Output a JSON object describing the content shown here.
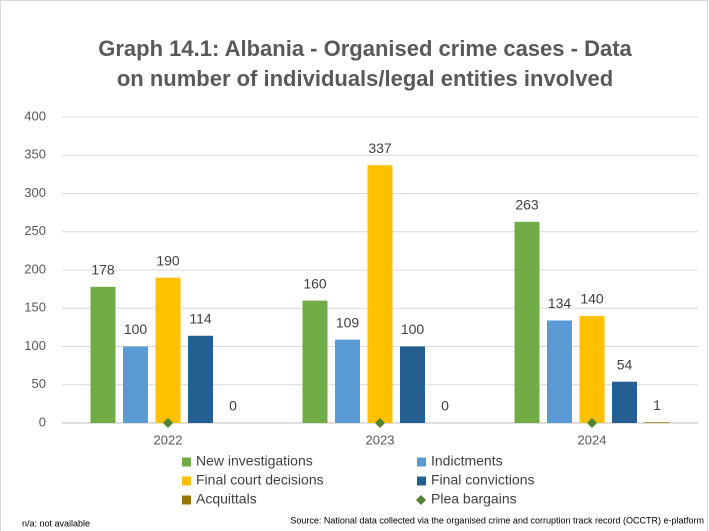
{
  "chart_data": {
    "type": "bar",
    "title": [
      "Graph 14.1: Albania - Organised crime cases - Data",
      "on number of individuals/legal entities involved"
    ],
    "categories": [
      "2022",
      "2023",
      "2024"
    ],
    "series": [
      {
        "name": "New investigations",
        "color": "#70ad47",
        "values": [
          178,
          160,
          263
        ]
      },
      {
        "name": "Indictments",
        "color": "#5b9bd5",
        "values": [
          100,
          109,
          134
        ]
      },
      {
        "name": "Final court decisions",
        "color": "#ffc000",
        "values": [
          190,
          337,
          140
        ]
      },
      {
        "name": "Final convictions",
        "color": "#255e91",
        "values": [
          114,
          100,
          54
        ]
      },
      {
        "name": "Acquittals",
        "color": "#997300",
        "values": [
          0,
          0,
          1
        ]
      },
      {
        "name": "Plea bargains",
        "color": "#548235",
        "marker": "diamond",
        "values": [
          0,
          0,
          0
        ]
      }
    ],
    "ylim": [
      0,
      400
    ],
    "yticks": [
      0,
      50,
      100,
      150,
      200,
      250,
      300,
      350,
      400
    ],
    "grid": true,
    "note": "n/a: not available",
    "source": "Source: National data collected via the organised crime and corruption track record (OCCTR) e-platform"
  }
}
